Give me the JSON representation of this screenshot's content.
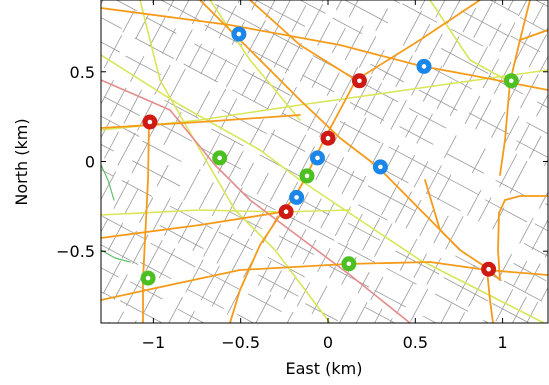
{
  "map": {
    "xlabel": "East (km)",
    "ylabel": "North (km)",
    "xlim": [
      -1.3,
      1.26
    ],
    "ylim": [
      -0.9,
      0.9
    ],
    "xticks": [
      -1,
      -0.5,
      0,
      0.5,
      1
    ],
    "xtick_labels": [
      "−1",
      "−0.5",
      "0",
      "0.5",
      "1"
    ],
    "yticks": [
      -0.5,
      0,
      0.5
    ],
    "ytick_labels": [
      "−0.5",
      "0",
      "0.5"
    ],
    "colors": {
      "minor_road": "#9b9b9b",
      "secondary_road": "#f59b1a",
      "tertiary_road": "#d9e65a",
      "primary_road": "#e58c8c",
      "park_edge": "#5fbf6a",
      "marker_red": "#cf1a14",
      "marker_blue": "#1a86ea",
      "marker_green": "#4cbf22",
      "marker_center": "#ffffff"
    },
    "markers": [
      {
        "color": "blue",
        "x": -0.51,
        "y": 0.71
      },
      {
        "color": "blue",
        "x": 0.55,
        "y": 0.53
      },
      {
        "color": "blue",
        "x": -0.06,
        "y": 0.02
      },
      {
        "color": "blue",
        "x": 0.3,
        "y": -0.03
      },
      {
        "color": "blue",
        "x": -0.18,
        "y": -0.2
      },
      {
        "color": "red",
        "x": 0.18,
        "y": 0.45
      },
      {
        "color": "red",
        "x": -1.02,
        "y": 0.22
      },
      {
        "color": "red",
        "x": 0.0,
        "y": 0.13
      },
      {
        "color": "red",
        "x": -0.24,
        "y": -0.28
      },
      {
        "color": "red",
        "x": 0.92,
        "y": -0.6
      },
      {
        "color": "green",
        "x": 1.05,
        "y": 0.45
      },
      {
        "color": "green",
        "x": -0.62,
        "y": 0.02
      },
      {
        "color": "green",
        "x": -0.12,
        "y": -0.08
      },
      {
        "color": "green",
        "x": 0.12,
        "y": -0.57
      },
      {
        "color": "green",
        "x": -1.03,
        "y": -0.65
      }
    ]
  }
}
